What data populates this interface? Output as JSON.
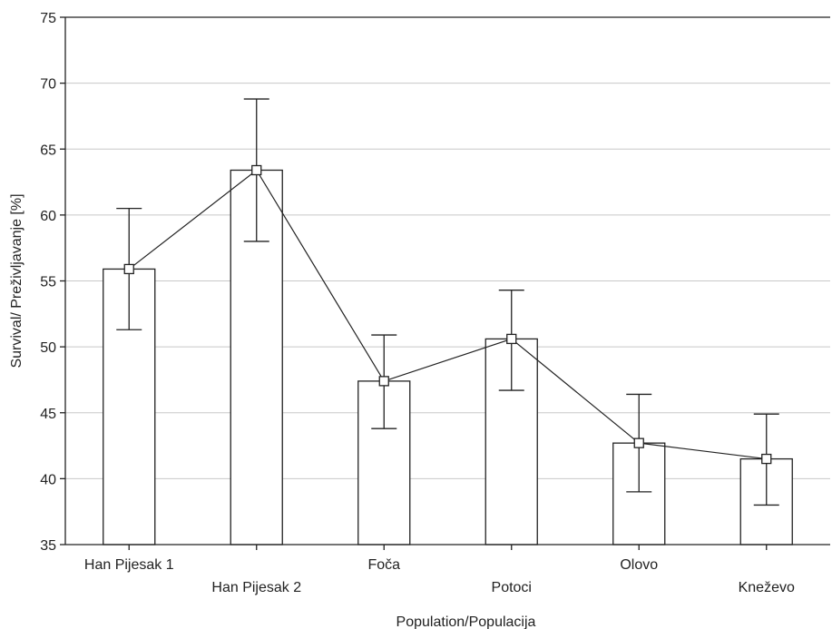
{
  "chart_data": {
    "type": "bar",
    "categories": [
      "Han Pijesak 1",
      "Han Pijesak 2",
      "Foča",
      "Potoci",
      "Olovo",
      "Kneževo"
    ],
    "values": [
      55.9,
      63.4,
      47.4,
      50.6,
      42.7,
      41.5
    ],
    "error_low": [
      51.3,
      58.0,
      43.8,
      46.7,
      39.0,
      38.0
    ],
    "error_high": [
      60.5,
      68.8,
      50.9,
      54.3,
      46.4,
      44.9
    ],
    "overlay": "line with square markers connecting means",
    "xlabel": "Population/Populacija",
    "ylabel": "Survival/ Preživljavanje [%]",
    "ylim": [
      35,
      75
    ],
    "yticks": [
      35,
      40,
      45,
      50,
      55,
      60,
      65,
      70,
      75
    ],
    "grid": "horizontal",
    "colors": {
      "bar_fill": "#ffffff",
      "stroke": "#222222",
      "grid": "#c8c8c8"
    }
  }
}
